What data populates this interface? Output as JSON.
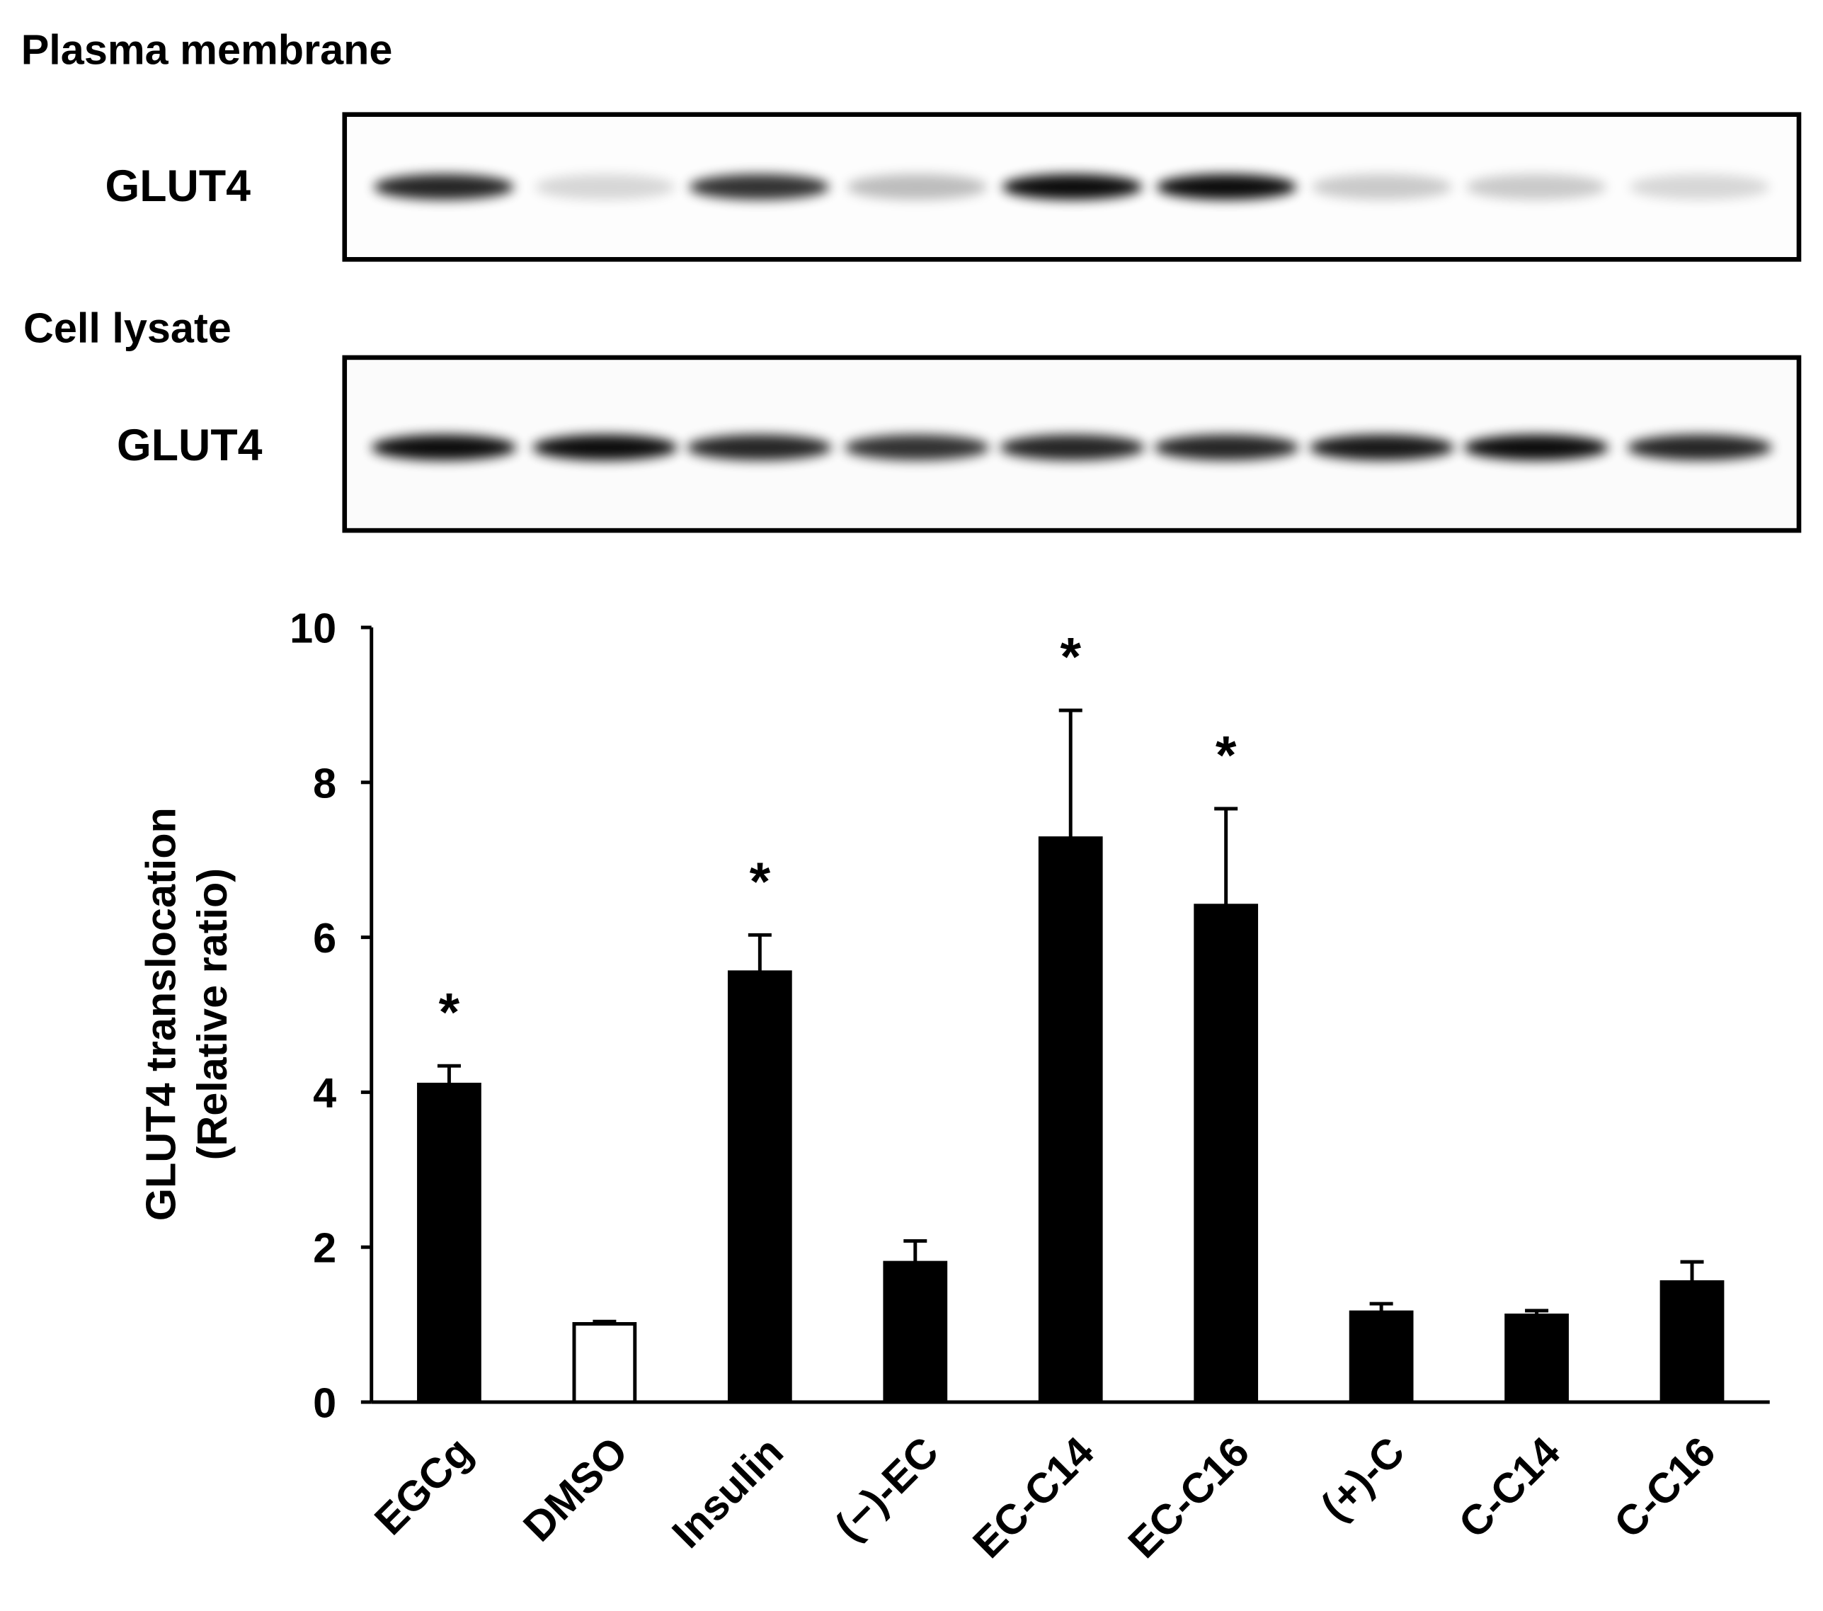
{
  "blots": [
    {
      "title": "Plasma membrane",
      "label": "GLUT4"
    },
    {
      "title": "Cell lysate",
      "label": "GLUT4"
    }
  ],
  "chart_data": {
    "type": "bar",
    "ylabel": [
      "GLUT4 translocation",
      "(Relative ratio)"
    ],
    "categories": [
      "EGCg",
      "DMSO",
      "Insulin",
      "(−)-EC",
      "EC-C14",
      "EC-C16",
      "(+)-C",
      "C-C14",
      "C-C16"
    ],
    "values": [
      4.1,
      1.01,
      5.55,
      1.8,
      7.28,
      6.41,
      1.16,
      1.12,
      1.55
    ],
    "errors": [
      0.24,
      0.03,
      0.48,
      0.28,
      1.65,
      1.25,
      0.11,
      0.06,
      0.26
    ],
    "colors": [
      "#000000",
      "#ffffff",
      "#000000",
      "#000000",
      "#000000",
      "#000000",
      "#000000",
      "#000000",
      "#000000"
    ],
    "annotations": [
      "*",
      null,
      "*",
      null,
      "*",
      "*",
      null,
      null,
      null
    ],
    "ylim": [
      0,
      10
    ],
    "yticks": [
      0,
      2,
      4,
      6,
      8,
      10
    ]
  }
}
